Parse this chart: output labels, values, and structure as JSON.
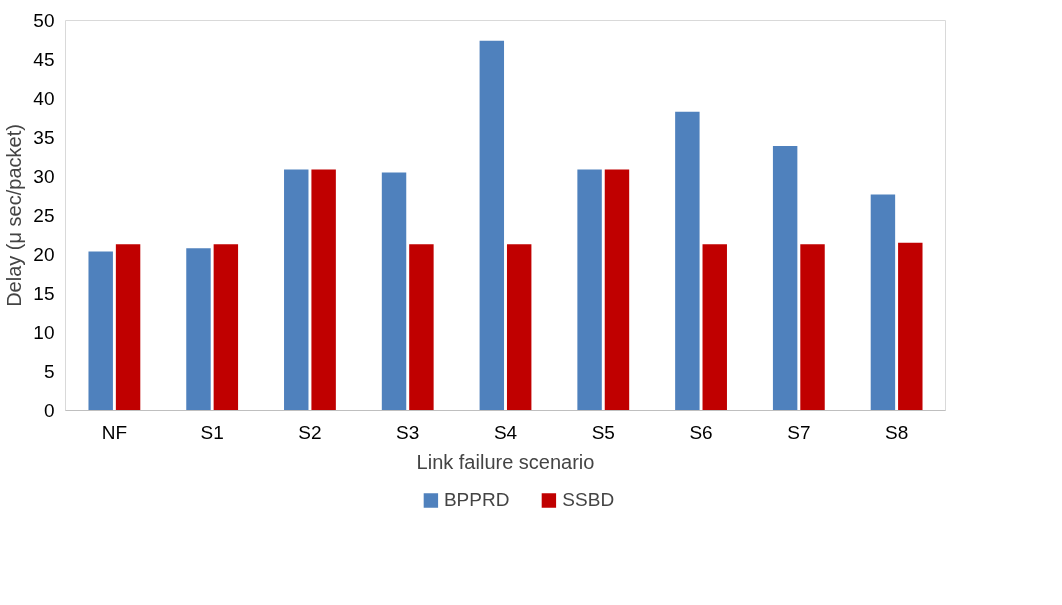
{
  "chart_data": {
    "type": "bar",
    "xlabel": "Link failure scenario",
    "ylabel": "Delay (μ sec/packet)",
    "categories": [
      "NF",
      "S1",
      "S2",
      "S3",
      "S4",
      "S5",
      "S6",
      "S7",
      "S8"
    ],
    "series": [
      {
        "name": "BPPRD",
        "color": "#4f81bd",
        "values": [
          20.4,
          20.8,
          30.9,
          30.5,
          47.4,
          30.9,
          38.3,
          33.9,
          27.7
        ]
      },
      {
        "name": "SSBD",
        "color": "#c00000",
        "values": [
          21.3,
          21.3,
          30.9,
          21.3,
          21.3,
          30.9,
          21.3,
          21.3,
          21.5
        ]
      }
    ],
    "ylim": [
      0,
      50
    ],
    "yticks": [
      0,
      5,
      10,
      15,
      20,
      25,
      30,
      35,
      40,
      45,
      50
    ],
    "grid": false,
    "legend": "bottom"
  }
}
